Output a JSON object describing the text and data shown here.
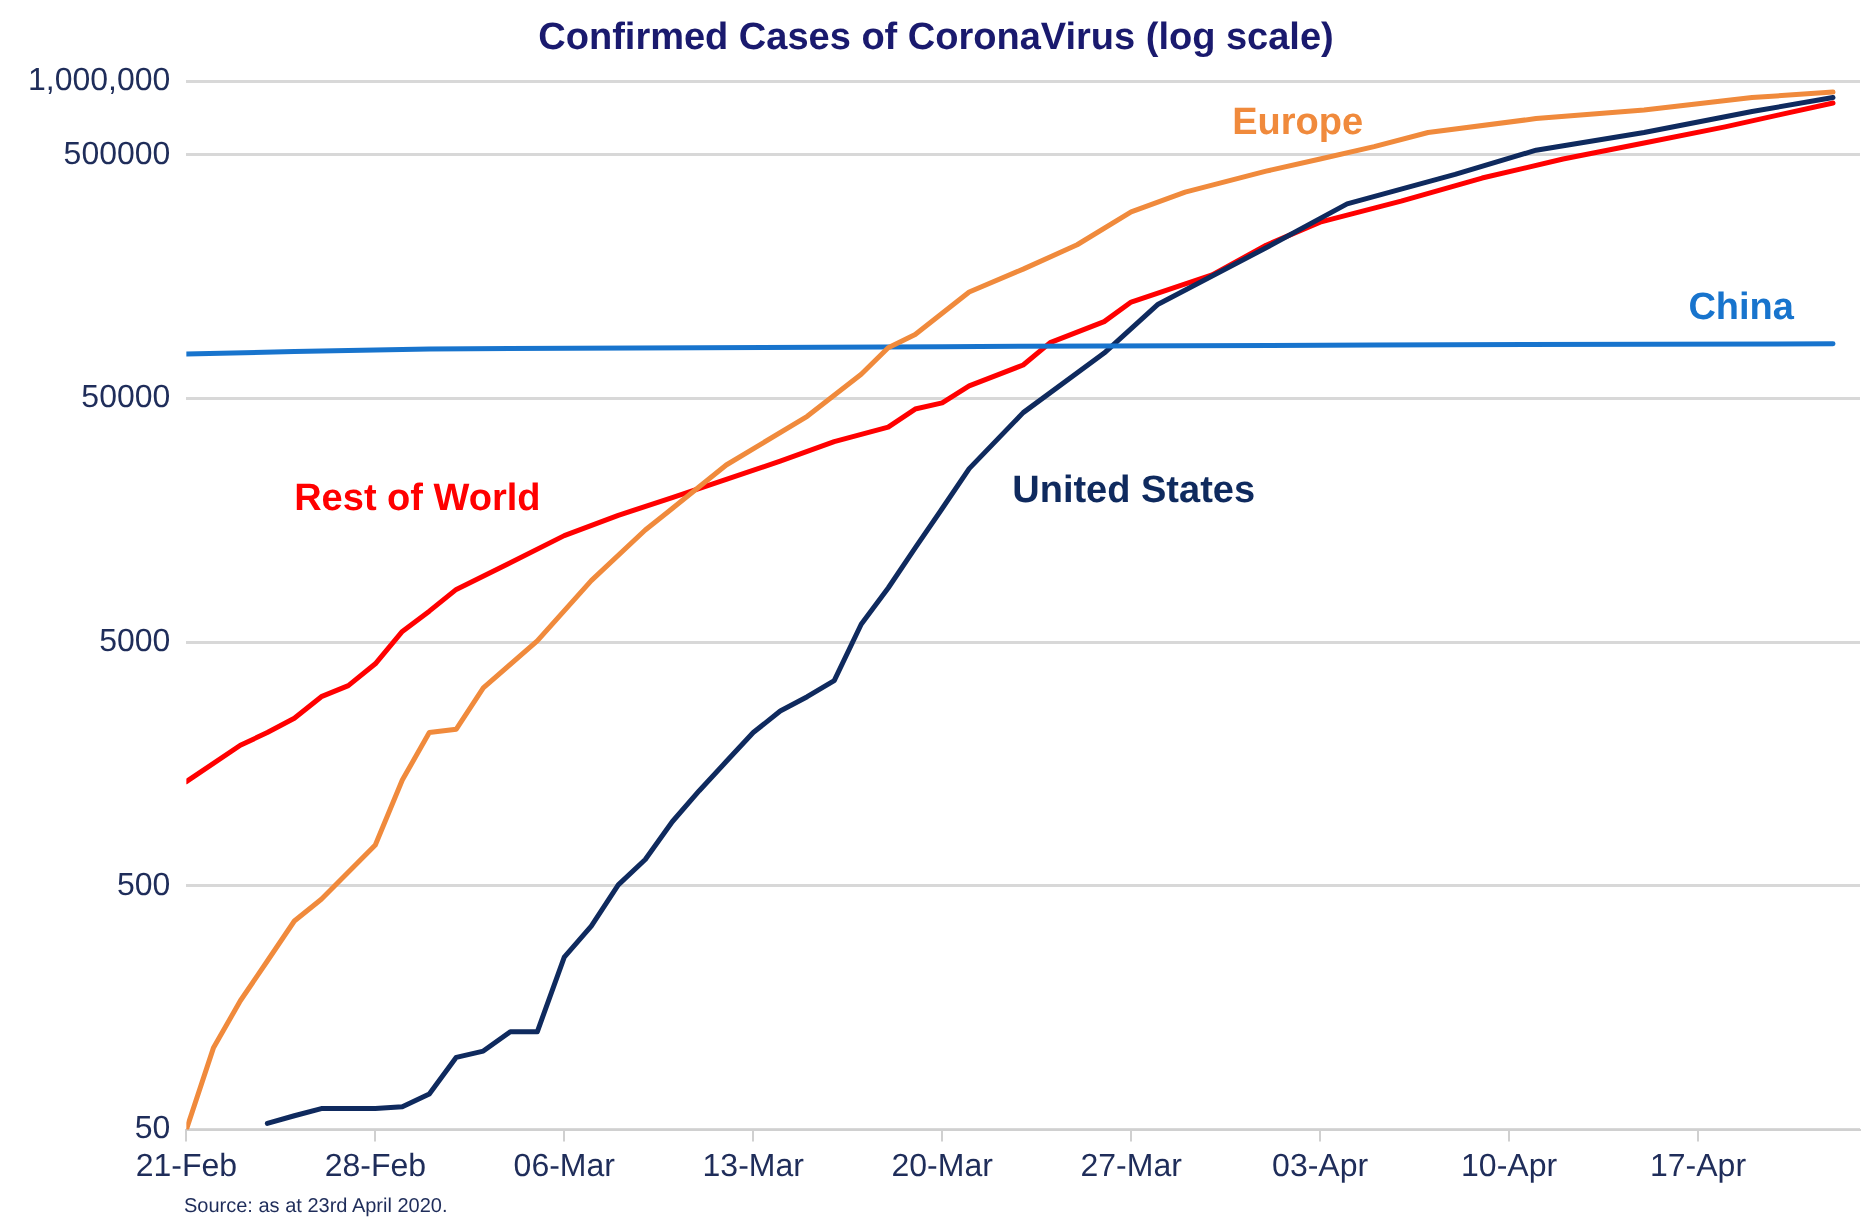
{
  "chart_data": {
    "type": "line",
    "title": "Confirmed Cases of CoronaVirus (log scale)",
    "log": "y",
    "grid": "y",
    "legend": false,
    "marker": "none",
    "line_style": "solid",
    "xlim": [
      "2020-02-21",
      "2020-04-23"
    ],
    "xticks": [
      {
        "value": "2020-02-21",
        "label": "21-Feb"
      },
      {
        "value": "2020-02-28",
        "label": "28-Feb"
      },
      {
        "value": "2020-03-06",
        "label": "06-Mar"
      },
      {
        "value": "2020-03-13",
        "label": "13-Mar"
      },
      {
        "value": "2020-03-20",
        "label": "20-Mar"
      },
      {
        "value": "2020-03-27",
        "label": "27-Mar"
      },
      {
        "value": "2020-04-03",
        "label": "03-Apr"
      },
      {
        "value": "2020-04-10",
        "label": "10-Apr"
      },
      {
        "value": "2020-04-17",
        "label": "17-Apr"
      }
    ],
    "ylim": [
      50,
      1000000
    ],
    "yticks": [
      50,
      500,
      5000,
      50000,
      500000,
      {
        "value": 1000000,
        "label": "1,000,000"
      }
    ],
    "annotations": [
      "Source: as at 23rd April 2020."
    ],
    "series": [
      {
        "name": "Europe",
        "color": "#f08a3c",
        "x": [
          "2020-02-21",
          "2020-02-22",
          "2020-02-23",
          "2020-02-24",
          "2020-02-25",
          "2020-02-26",
          "2020-02-28",
          "2020-02-29",
          "2020-03-01",
          "2020-03-02",
          "2020-03-03",
          "2020-03-05",
          "2020-03-07",
          "2020-03-09",
          "2020-03-10",
          "2020-03-12",
          "2020-03-15",
          "2020-03-17",
          "2020-03-18",
          "2020-03-19",
          "2020-03-21",
          "2020-03-23",
          "2020-03-25",
          "2020-03-27",
          "2020-03-29",
          "2020-04-01",
          "2020-04-03",
          "2020-04-05",
          "2020-04-07",
          "2020-04-11",
          "2020-04-15",
          "2020-04-19",
          "2020-04-22"
        ],
        "values": [
          50,
          108,
          169,
          246,
          359,
          441,
          736,
          1360,
          2130,
          2200,
          3250,
          5070,
          8950,
          14450,
          17700,
          26700,
          42300,
          62900,
          80900,
          91700,
          137000,
          170000,
          214000,
          292000,
          352000,
          429000,
          481000,
          541000,
          618000,
          705000,
          764000,
          860000,
          906000
        ]
      },
      {
        "name": "China",
        "color": "#1874cd",
        "x": [
          "2020-02-21",
          "2020-02-25",
          "2020-03-01",
          "2020-03-20",
          "2020-04-05",
          "2020-04-22"
        ],
        "values": [
          76200,
          78000,
          80000,
          81700,
          83000,
          83900
        ]
      },
      {
        "name": "United States",
        "color": "#0f2a5e",
        "x": [
          "2020-02-24",
          "2020-02-25",
          "2020-02-26",
          "2020-02-28",
          "2020-02-29",
          "2020-03-01",
          "2020-03-02",
          "2020-03-03",
          "2020-03-04",
          "2020-03-05",
          "2020-03-06",
          "2020-03-07",
          "2020-03-08",
          "2020-03-09",
          "2020-03-10",
          "2020-03-11",
          "2020-03-12",
          "2020-03-13",
          "2020-03-14",
          "2020-03-15",
          "2020-03-16",
          "2020-03-17",
          "2020-03-18",
          "2020-03-19",
          "2020-03-20",
          "2020-03-21",
          "2020-03-23",
          "2020-03-26",
          "2020-03-28",
          "2020-04-01",
          "2020-04-04",
          "2020-04-08",
          "2020-04-11",
          "2020-04-15",
          "2020-04-19",
          "2020-04-22"
        ],
        "values": [
          53,
          57,
          61,
          61,
          62,
          70,
          99,
          105,
          126,
          126,
          255,
          342,
          505,
          642,
          917,
          1230,
          1620,
          2130,
          2610,
          2990,
          3480,
          5930,
          8350,
          12200,
          17700,
          25800,
          43800,
          76900,
          122000,
          208000,
          315000,
          416000,
          523000,
          618000,
          754000,
          860000
        ]
      },
      {
        "name": "Rest of World",
        "color": "#ff0000",
        "x": [
          "2020-02-21",
          "2020-02-23",
          "2020-02-24",
          "2020-02-25",
          "2020-02-26",
          "2020-02-27",
          "2020-02-28",
          "2020-02-29",
          "2020-03-01",
          "2020-03-02",
          "2020-03-04",
          "2020-03-06",
          "2020-03-08",
          "2020-03-10",
          "2020-03-12",
          "2020-03-14",
          "2020-03-16",
          "2020-03-18",
          "2020-03-19",
          "2020-03-20",
          "2020-03-21",
          "2020-03-23",
          "2020-03-24",
          "2020-03-26",
          "2020-03-27",
          "2020-03-30",
          "2020-04-01",
          "2020-04-03",
          "2020-04-06",
          "2020-04-09",
          "2020-04-12",
          "2020-04-15",
          "2020-04-18",
          "2020-04-20",
          "2020-04-22"
        ],
        "values": [
          1340,
          1890,
          2130,
          2440,
          2990,
          3320,
          4080,
          5540,
          6710,
          8240,
          10600,
          13700,
          16600,
          19600,
          23300,
          27700,
          33300,
          38200,
          45300,
          48000,
          56400,
          68700,
          84900,
          103500,
          124500,
          161000,
          213000,
          265000,
          323000,
          402000,
          481000,
          560000,
          652000,
          730000,
          817000
        ]
      }
    ]
  }
}
